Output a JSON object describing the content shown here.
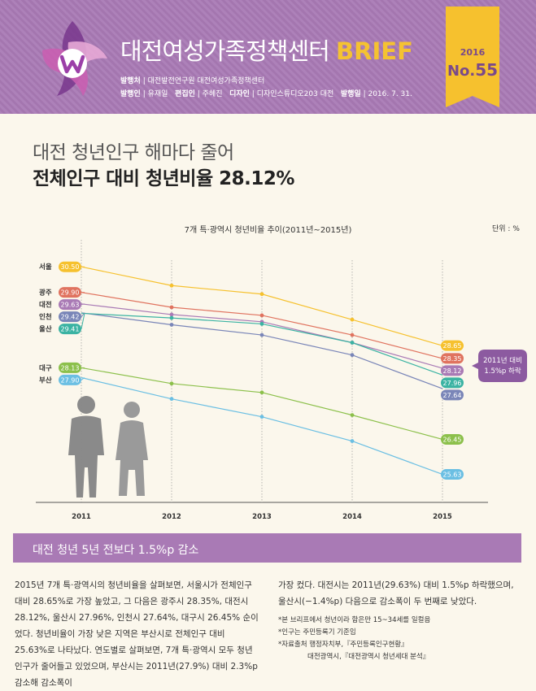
{
  "header": {
    "brand_main": "대전여성가족정책센터",
    "brand_accent": "BRIEF",
    "meta_line1": [
      {
        "label": "발행처",
        "value": "대전발전연구원 대전여성가족정책센터"
      }
    ],
    "meta_line2": [
      {
        "label": "발행인",
        "value": "유재일"
      },
      {
        "label": "편집인",
        "value": "주혜진"
      },
      {
        "label": "디자인",
        "value": "디자인스튜디오203 대전"
      },
      {
        "label": "발행일",
        "value": "2016. 7. 31."
      }
    ],
    "issue_year": "2016",
    "issue_prefix": "No.",
    "issue_number": "55",
    "colors": {
      "header_bg": "#a97ab5",
      "accent": "#f6c12e"
    }
  },
  "headline": {
    "line1": "대전 청년인구 해마다 줄어",
    "line2": "전체인구 대비 청년비율 28.12%"
  },
  "chart_data": {
    "type": "line",
    "title": "7개 특·광역시 청년비율 추이(2011년~2015년)",
    "unit": "단위 : %",
    "x": [
      "2011",
      "2012",
      "2013",
      "2014",
      "2015"
    ],
    "ylim": [
      25.2,
      31.0
    ],
    "grid": false,
    "annotation": "2011년 대비 1.5%p 하락",
    "series": [
      {
        "name": "서울",
        "color": "#f6c12e",
        "values": [
          30.5,
          30.06,
          29.86,
          29.26,
          28.65
        ],
        "start_label": "30.50",
        "end_label": "28.65"
      },
      {
        "name": "광주",
        "color": "#e0735f",
        "values": [
          29.9,
          29.55,
          29.36,
          28.9,
          28.35
        ],
        "start_label": "29.90",
        "end_label": "28.35"
      },
      {
        "name": "대전",
        "color": "#a97ab5",
        "values": [
          29.63,
          29.38,
          29.21,
          28.72,
          28.12
        ],
        "start_label": "29.63",
        "end_label": "28.12"
      },
      {
        "name": "인천",
        "color": "#7a86b8",
        "values": [
          29.42,
          29.14,
          28.9,
          28.43,
          27.64
        ],
        "start_label": "29.42",
        "end_label": "27.64"
      },
      {
        "name": "울산",
        "color": "#3bb3a3",
        "values": [
          29.41,
          29.3,
          29.16,
          28.72,
          27.96
        ],
        "start_label": "29.41",
        "end_label": "27.96"
      },
      {
        "name": "대구",
        "color": "#8cc04b",
        "values": [
          28.13,
          27.76,
          27.55,
          27.02,
          26.45
        ],
        "start_label": "28.13",
        "end_label": "26.45"
      },
      {
        "name": "부산",
        "color": "#6bbfe3",
        "values": [
          27.9,
          27.4,
          26.98,
          26.41,
          25.63
        ],
        "start_label": "27.90",
        "end_label": "25.63"
      }
    ]
  },
  "section": {
    "title": "대전 청년 5년 전보다 1.5%p 감소"
  },
  "body": {
    "col1": "2015년 7개 특·광역시의 청년비율을 살펴보면, 서울시가 전체인구 대비 28.65%로 가장 높았고, 그 다음은 광주시 28.35%, 대전시 28.12%, 울산시 27.96%, 인천시 27.64%, 대구시 26.45% 순이었다. 청년비율이 가장 낮은 지역은 부산시로 전체인구 대비 25.63%로 나타났다. 연도별로 살펴보면, 7개 특·광역시 모두 청년인구가 줄어들고 있었으며, 부산시는 2011년(27.9%) 대비 2.3%p 감소해 감소폭이",
    "col2": "가장 컸다. 대전시는 2011년(29.63%) 대비 1.5%p 하락했으며, 울산시(−1.4%p) 다음으로 감소폭이 두 번째로 낮았다.",
    "notes": [
      "*본 브리프에서 청년이라 함은만 15~34세를 일컬음",
      "*인구는 주민등록기 기준임",
      "*자료출처 행정자치부,『주민등록인구현황』",
      "대전광역시,『대전광역시 청년세대 분석』"
    ]
  }
}
